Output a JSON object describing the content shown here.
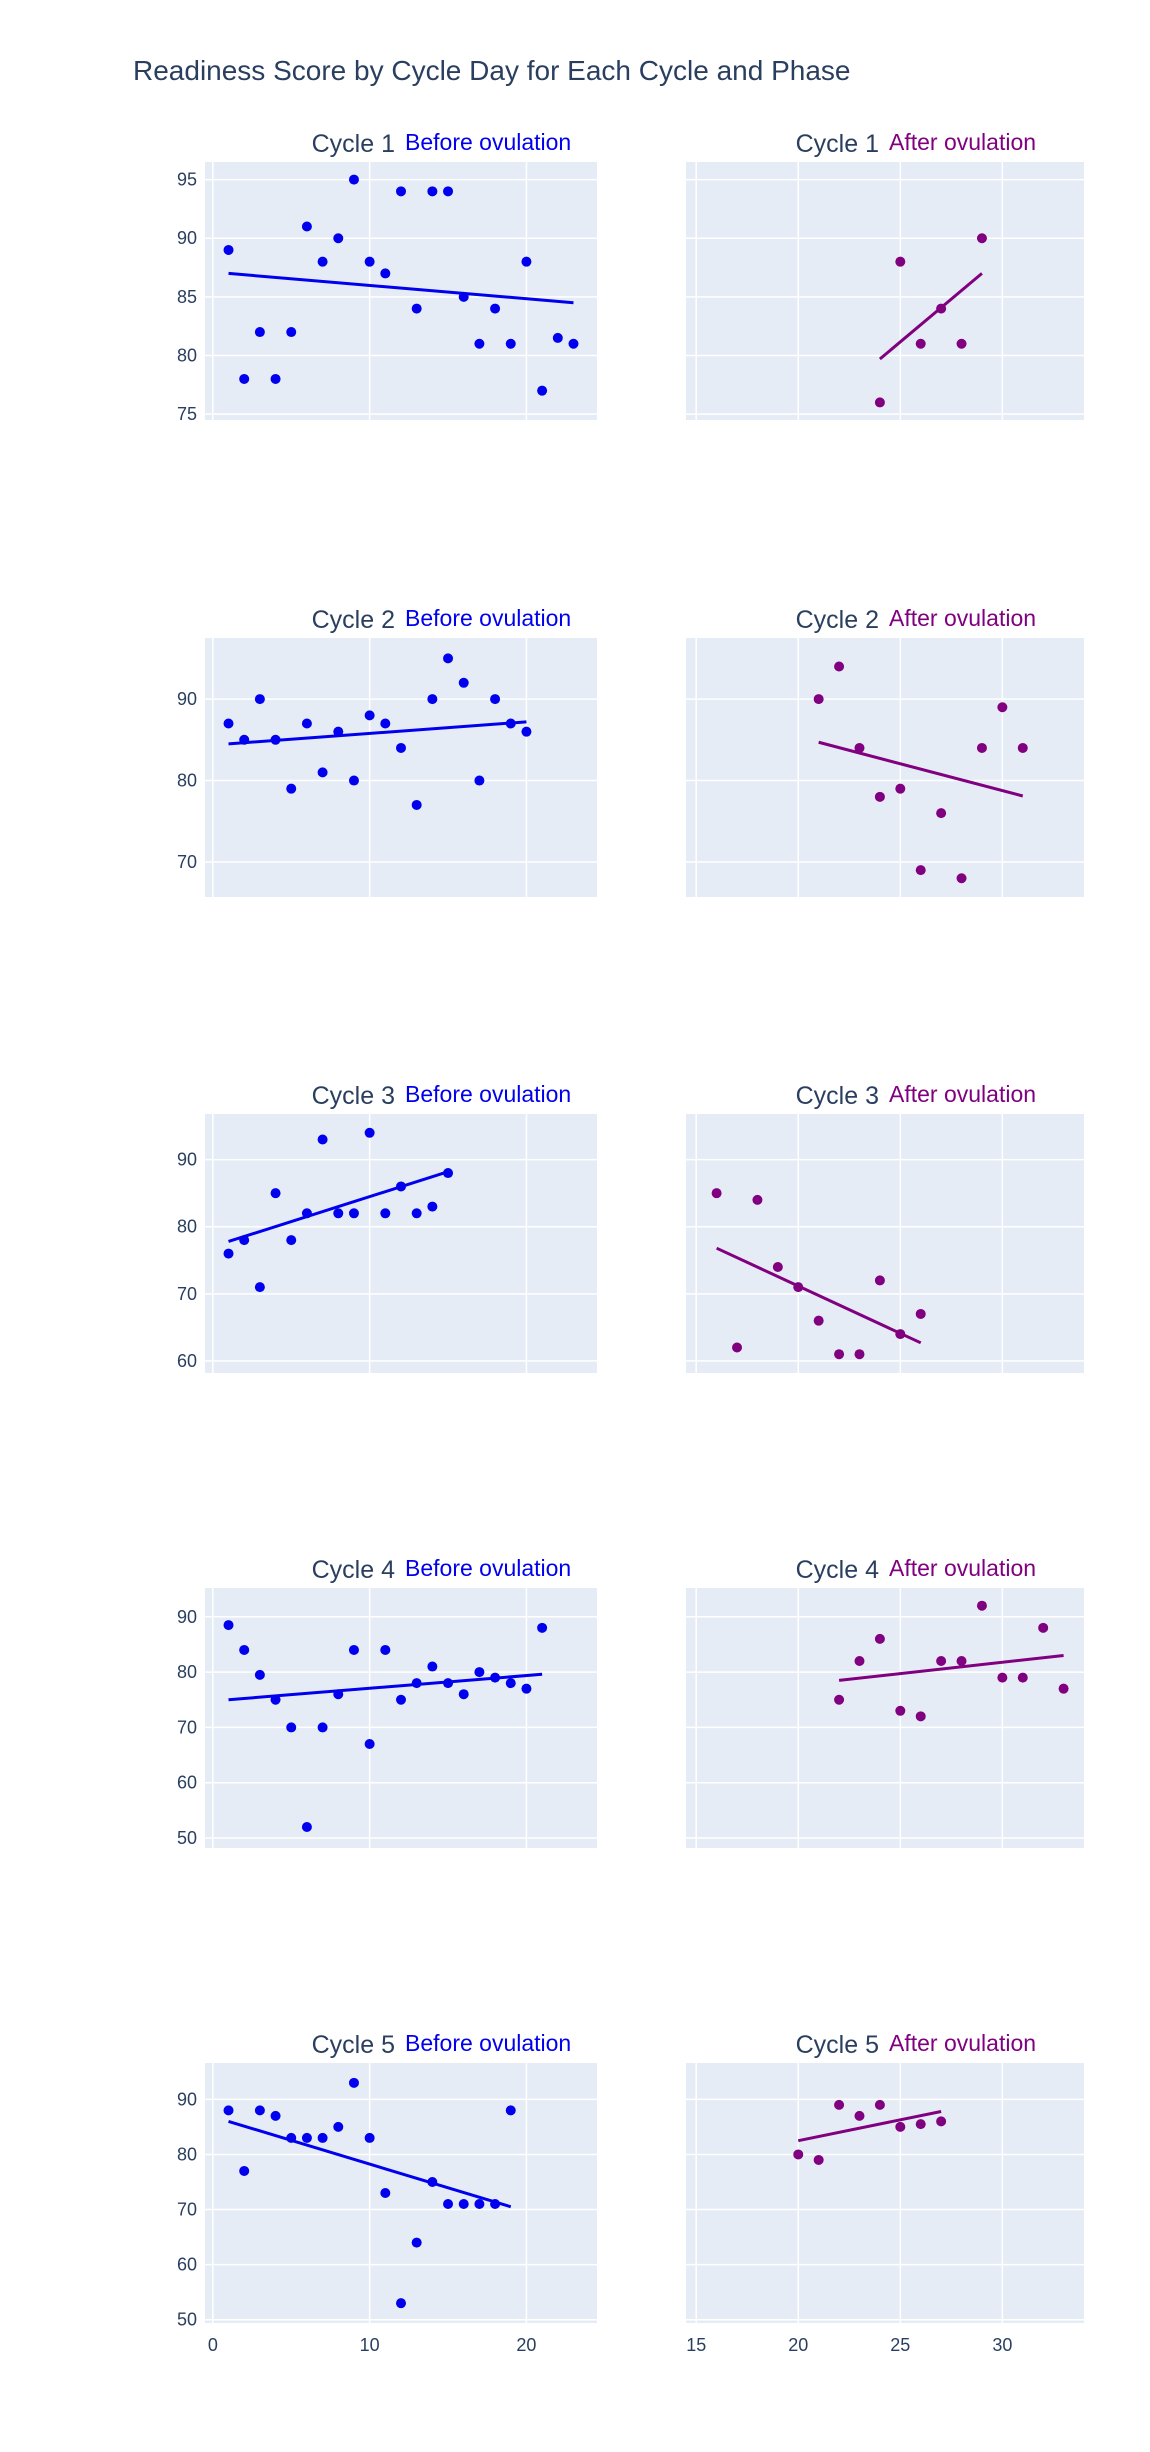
{
  "figure": {
    "title": "Readiness Score by Cycle Day for Each Cycle and Phase"
  },
  "colors": {
    "before": "#0000ee",
    "after": "#800080",
    "plot_bg": "#e5ecf6",
    "grid": "#ffffff",
    "text": "#2a3f5f"
  },
  "chart_data": [
    {
      "type": "scatter",
      "cycle_title": "Cycle 1",
      "phase_label": "Before ovulation",
      "phase": "before",
      "xlim": [
        -0.5,
        24.5
      ],
      "ylim": [
        74.5,
        96.5
      ],
      "yticks": [
        75,
        80,
        85,
        90,
        95
      ],
      "xticks": [
        0,
        10,
        20
      ],
      "show_x_tick_labels": false,
      "x": [
        1,
        2,
        3,
        4,
        5,
        6,
        7,
        8,
        9,
        10,
        11,
        12,
        13,
        14,
        15,
        16,
        17,
        18,
        19,
        20,
        21,
        22,
        23
      ],
      "y": [
        89,
        78,
        82,
        78,
        82,
        91,
        88,
        90,
        95,
        88,
        87,
        94,
        84,
        94,
        94,
        85,
        81,
        84,
        81,
        88,
        77,
        81.5,
        81
      ],
      "trendline": [
        [
          1,
          87
        ],
        [
          23,
          84.5
        ]
      ]
    },
    {
      "type": "scatter",
      "cycle_title": "Cycle 1",
      "phase_label": "After ovulation",
      "phase": "after",
      "xlim": [
        14.5,
        34
      ],
      "ylim": [
        74.5,
        96.5
      ],
      "yticks": [
        75,
        80,
        85,
        90,
        95
      ],
      "xticks": [
        15,
        20,
        25,
        30
      ],
      "show_x_tick_labels": false,
      "x": [
        24,
        25,
        26,
        27,
        28,
        29
      ],
      "y": [
        76,
        88,
        81,
        84,
        81,
        90
      ],
      "trendline": [
        [
          24,
          79.7
        ],
        [
          29,
          87
        ]
      ]
    },
    {
      "type": "scatter",
      "cycle_title": "Cycle 2",
      "phase_label": "Before ovulation",
      "phase": "before",
      "xlim": [
        -0.5,
        24.5
      ],
      "ylim": [
        65.7,
        97.5
      ],
      "yticks": [
        70,
        80,
        90
      ],
      "xticks": [
        0,
        10,
        20
      ],
      "show_x_tick_labels": false,
      "x": [
        1,
        2,
        3,
        4,
        5,
        6,
        7,
        8,
        9,
        10,
        11,
        12,
        13,
        14,
        15,
        16,
        17,
        18,
        19,
        20
      ],
      "y": [
        87,
        85,
        90,
        85,
        79,
        87,
        81,
        86,
        80,
        88,
        87,
        84,
        77,
        90,
        95,
        92,
        80,
        90,
        87,
        86
      ],
      "trendline": [
        [
          1,
          84.5
        ],
        [
          20,
          87.2
        ]
      ]
    },
    {
      "type": "scatter",
      "cycle_title": "Cycle 2",
      "phase_label": "After ovulation",
      "phase": "after",
      "xlim": [
        14.5,
        34
      ],
      "ylim": [
        65.7,
        97.5
      ],
      "yticks": [
        70,
        80,
        90
      ],
      "xticks": [
        15,
        20,
        25,
        30
      ],
      "show_x_tick_labels": false,
      "x": [
        21,
        22,
        23,
        24,
        25,
        26,
        27,
        28,
        29,
        30,
        31
      ],
      "y": [
        90,
        94,
        84,
        78,
        79,
        69,
        76,
        68,
        84,
        89,
        84
      ],
      "trendline": [
        [
          21,
          84.7
        ],
        [
          31,
          78.1
        ]
      ]
    },
    {
      "type": "scatter",
      "cycle_title": "Cycle 3",
      "phase_label": "Before ovulation",
      "phase": "before",
      "xlim": [
        -0.5,
        24.5
      ],
      "ylim": [
        58.2,
        96.8
      ],
      "yticks": [
        60,
        70,
        80,
        90
      ],
      "xticks": [
        0,
        10,
        20
      ],
      "show_x_tick_labels": false,
      "x": [
        1,
        2,
        3,
        4,
        5,
        6,
        7,
        8,
        9,
        10,
        11,
        12,
        13,
        14,
        15
      ],
      "y": [
        76,
        78,
        71,
        85,
        78,
        82,
        93,
        82,
        82,
        94,
        82,
        86,
        82,
        83,
        88
      ],
      "trendline": [
        [
          1,
          77.8
        ],
        [
          15,
          88.2
        ]
      ]
    },
    {
      "type": "scatter",
      "cycle_title": "Cycle 3",
      "phase_label": "After ovulation",
      "phase": "after",
      "xlim": [
        14.5,
        34
      ],
      "ylim": [
        58.2,
        96.8
      ],
      "yticks": [
        60,
        70,
        80,
        90
      ],
      "xticks": [
        15,
        20,
        25,
        30
      ],
      "show_x_tick_labels": false,
      "x": [
        16,
        17,
        18,
        19,
        20,
        21,
        22,
        23,
        24,
        25,
        26
      ],
      "y": [
        85,
        62,
        84,
        74,
        71,
        66,
        61,
        61,
        72,
        64,
        67
      ],
      "trendline": [
        [
          16,
          76.8
        ],
        [
          26,
          62.7
        ]
      ]
    },
    {
      "type": "scatter",
      "cycle_title": "Cycle 4",
      "phase_label": "Before ovulation",
      "phase": "before",
      "xlim": [
        -0.5,
        24.5
      ],
      "ylim": [
        48.2,
        95.2
      ],
      "yticks": [
        50,
        60,
        70,
        80,
        90
      ],
      "xticks": [
        0,
        10,
        20
      ],
      "show_x_tick_labels": false,
      "x": [
        1,
        2,
        3,
        4,
        5,
        6,
        7,
        8,
        9,
        10,
        11,
        12,
        13,
        14,
        15,
        16,
        17,
        18,
        19,
        20,
        21
      ],
      "y": [
        88.5,
        84,
        79.5,
        75,
        70,
        52,
        70,
        76,
        84,
        67,
        84,
        75,
        78,
        81,
        78,
        76,
        80,
        79,
        78,
        77,
        88
      ],
      "trendline": [
        [
          1,
          75
        ],
        [
          21,
          79.6
        ]
      ]
    },
    {
      "type": "scatter",
      "cycle_title": "Cycle 4",
      "phase_label": "After ovulation",
      "phase": "after",
      "xlim": [
        14.5,
        34
      ],
      "ylim": [
        48.2,
        95.2
      ],
      "yticks": [
        50,
        60,
        70,
        80,
        90
      ],
      "xticks": [
        15,
        20,
        25,
        30
      ],
      "show_x_tick_labels": false,
      "x": [
        22,
        23,
        24,
        25,
        26,
        27,
        28,
        29,
        30,
        31,
        32,
        33
      ],
      "y": [
        75,
        82,
        86,
        73,
        72,
        82,
        82,
        92,
        79,
        79,
        88,
        77
      ],
      "trendline": [
        [
          22,
          78.5
        ],
        [
          33,
          83
        ]
      ]
    },
    {
      "type": "scatter",
      "cycle_title": "Cycle 5",
      "phase_label": "Before ovulation",
      "phase": "before",
      "xlim": [
        -0.5,
        24.5
      ],
      "ylim": [
        49.4,
        96.6
      ],
      "yticks": [
        50,
        60,
        70,
        80,
        90
      ],
      "xticks": [
        0,
        10,
        20
      ],
      "show_x_tick_labels": true,
      "x": [
        1,
        2,
        3,
        4,
        5,
        6,
        7,
        8,
        9,
        10,
        11,
        12,
        13,
        14,
        15,
        16,
        17,
        18,
        19
      ],
      "y": [
        88,
        77,
        88,
        87,
        83,
        83,
        83,
        85,
        93,
        83,
        73,
        53,
        64,
        75,
        71,
        71,
        71,
        71,
        88
      ],
      "trendline": [
        [
          1,
          86
        ],
        [
          19,
          70.5
        ]
      ]
    },
    {
      "type": "scatter",
      "cycle_title": "Cycle 5",
      "phase_label": "After ovulation",
      "phase": "after",
      "xlim": [
        14.5,
        34
      ],
      "ylim": [
        49.4,
        96.6
      ],
      "yticks": [
        50,
        60,
        70,
        80,
        90
      ],
      "xticks": [
        15,
        20,
        25,
        30
      ],
      "show_x_tick_labels": true,
      "x": [
        20,
        21,
        22,
        23,
        24,
        25,
        26,
        27
      ],
      "y": [
        80,
        79,
        89,
        87,
        89,
        85,
        85.5,
        86
      ],
      "trendline": [
        [
          20,
          82.5
        ],
        [
          27,
          87.8
        ]
      ]
    }
  ]
}
